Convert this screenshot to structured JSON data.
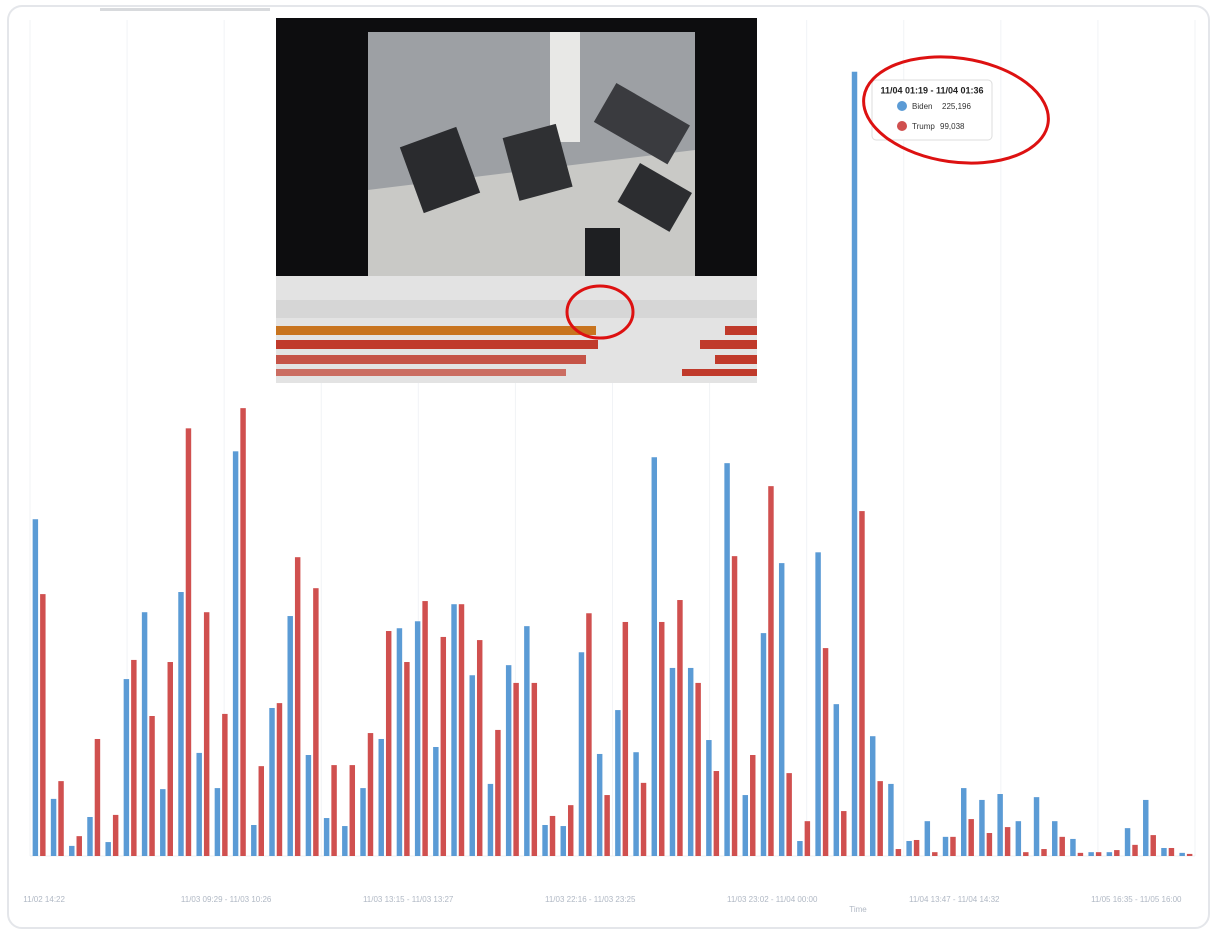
{
  "chart_data": {
    "type": "bar",
    "x_label": "Time",
    "categories": [
      "11/02 14:22",
      null,
      null,
      null,
      null,
      null,
      null,
      null,
      null,
      null,
      "11/03 09:29 - 11/03 10:26",
      null,
      null,
      null,
      null,
      null,
      null,
      null,
      null,
      null,
      "11/03 13:15 - 11/03 13:27",
      null,
      null,
      null,
      null,
      null,
      null,
      null,
      null,
      null,
      "11/03 22:16 - 11/03 23:25",
      null,
      null,
      null,
      null,
      null,
      null,
      null,
      null,
      null,
      "11/03 23:02 - 11/04 00:00",
      null,
      null,
      null,
      null,
      null,
      null,
      null,
      null,
      null,
      "11/04 13:47 - 11/04 14:32",
      null,
      null,
      null,
      null,
      null,
      null,
      null,
      null,
      null,
      "11/05 16:35 - 11/05 16:00",
      null,
      null,
      null
    ],
    "tooltip_title": "11/04 01:19 - 11/04 01:36",
    "series": [
      {
        "name": "Biden",
        "color": "#5b9bd5",
        "values": [
          96700,
          16400,
          2900,
          11200,
          4000,
          50800,
          70000,
          19200,
          75800,
          29600,
          19500,
          116200,
          8900,
          42500,
          68900,
          29000,
          10900,
          8600,
          19500,
          33600,
          65400,
          67400,
          31300,
          72300,
          51900,
          20700,
          54800,
          66000,
          8900,
          8600,
          58500,
          29300,
          41900,
          29800,
          114500,
          54000,
          54000,
          33300,
          112800,
          17500,
          64000,
          84100,
          4300,
          87200,
          43600,
          225196,
          34400,
          20700,
          4300,
          10000,
          5500,
          19500,
          16100,
          17800,
          10000,
          16900,
          10000,
          4900,
          1100,
          1100,
          8000,
          16100,
          2300,
          900
        ],
        "value_labels": [
          null,
          null,
          null,
          null,
          null,
          null,
          null,
          null,
          null,
          null,
          null,
          null,
          null,
          null,
          null,
          null,
          null,
          null,
          null,
          null,
          null,
          null,
          null,
          null,
          null,
          null,
          null,
          null,
          null,
          null,
          null,
          null,
          null,
          null,
          null,
          null,
          null,
          null,
          null,
          null,
          null,
          null,
          null,
          null,
          null,
          "225,196",
          null,
          null,
          null,
          null,
          null,
          null,
          null,
          null,
          null,
          null,
          null,
          null,
          null,
          null,
          null,
          null,
          null,
          null
        ]
      },
      {
        "name": "Trump",
        "color": "#d0504f",
        "values": [
          75200,
          21500,
          5700,
          33600,
          11800,
          56300,
          40200,
          55700,
          122800,
          70000,
          40800,
          128600,
          25800,
          43900,
          85800,
          76900,
          26100,
          26100,
          35300,
          64600,
          55700,
          73200,
          62900,
          72300,
          62000,
          36200,
          49700,
          49700,
          11500,
          14600,
          69700,
          17500,
          67200,
          21000,
          67200,
          73500,
          49700,
          24400,
          86100,
          29000,
          106200,
          23800,
          10000,
          59700,
          12900,
          99038,
          21500,
          2000,
          4600,
          1100,
          5500,
          10600,
          6600,
          8300,
          1100,
          2000,
          5500,
          900,
          1100,
          1700,
          3200,
          6000,
          2300,
          600
        ],
        "value_labels": [
          null,
          null,
          null,
          null,
          null,
          null,
          null,
          null,
          null,
          null,
          null,
          null,
          null,
          null,
          null,
          null,
          null,
          null,
          null,
          null,
          null,
          null,
          null,
          null,
          null,
          null,
          null,
          null,
          null,
          null,
          null,
          null,
          null,
          null,
          null,
          null,
          null,
          null,
          null,
          null,
          null,
          null,
          null,
          null,
          null,
          "99,038",
          null,
          null,
          null,
          null,
          null,
          null,
          null,
          null,
          null,
          null,
          null,
          null,
          null,
          null,
          null,
          null,
          null,
          null
        ]
      }
    ],
    "ylim": [
      0,
      230000
    ]
  }
}
